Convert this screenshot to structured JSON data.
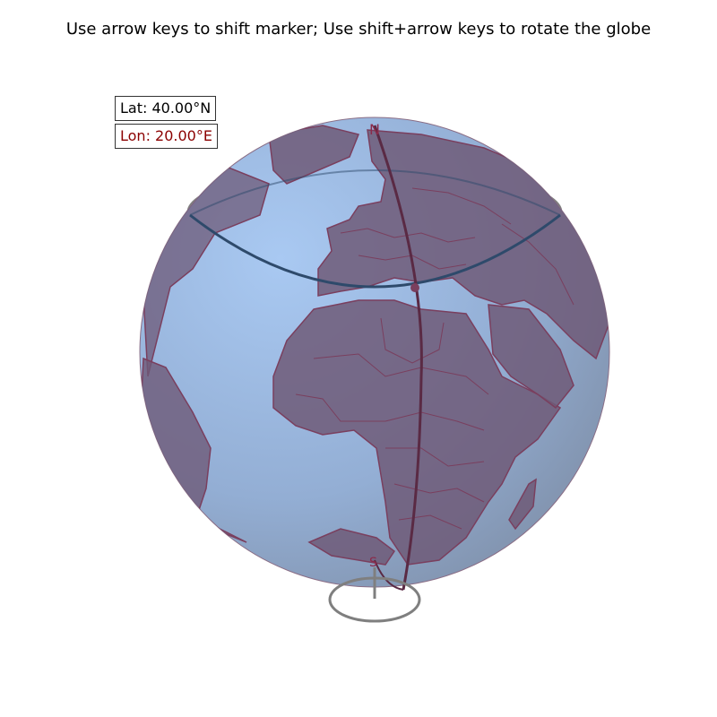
{
  "title": "Use arrow keys to shift marker; Use shift+arrow keys to rotate the globe",
  "readout": {
    "lat": "Lat: 40.00°N",
    "lon": "Lon: 20.00°E",
    "lat_color": "#000000",
    "lon_color": "#8b0000"
  },
  "globe": {
    "pole_north": "N",
    "pole_south": "S",
    "ocean_color": "#9fbde6",
    "land_color": "#6e5a78",
    "border_color": "#7a3f5e",
    "meridian_color": "#5a2a44",
    "parallel_color": "#2e4a6b",
    "axis_color": "#7f7f7f"
  }
}
